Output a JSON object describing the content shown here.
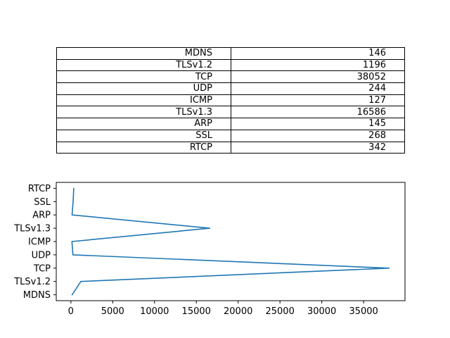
{
  "chart_data": [
    {
      "type": "table",
      "rows": [
        [
          "MDNS",
          "146"
        ],
        [
          "TLSv1.2",
          "1196"
        ],
        [
          "TCP",
          "38052"
        ],
        [
          "UDP",
          "244"
        ],
        [
          "ICMP",
          "127"
        ],
        [
          "TLSv1.3",
          "16586"
        ],
        [
          "ARP",
          "145"
        ],
        [
          "SSL",
          "268"
        ],
        [
          "RTCP",
          "342"
        ]
      ]
    },
    {
      "type": "line",
      "orientation": "horizontal",
      "categories": [
        "MDNS",
        "TLSv1.2",
        "TCP",
        "UDP",
        "ICMP",
        "TLSv1.3",
        "ARP",
        "SSL",
        "RTCP"
      ],
      "values": [
        146,
        1196,
        38052,
        244,
        127,
        16586,
        145,
        268,
        342
      ],
      "xticks": [
        0,
        5000,
        10000,
        15000,
        20000,
        25000,
        30000,
        35000
      ],
      "xlim": [
        -1750,
        39950
      ],
      "color": "#1f77b4",
      "grid": false
    }
  ]
}
